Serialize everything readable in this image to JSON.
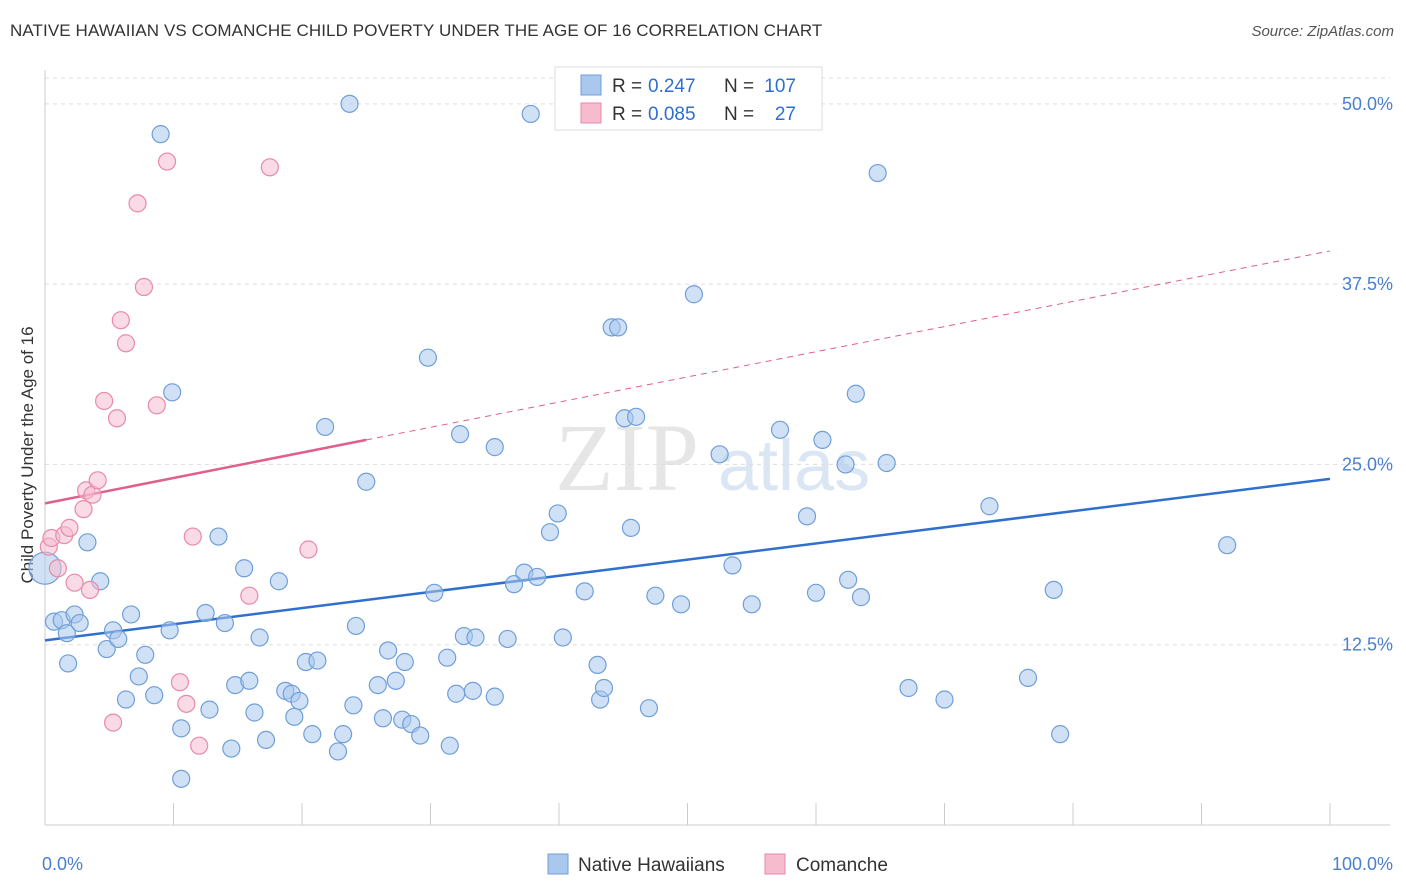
{
  "header": {
    "title": "NATIVE HAWAIIAN VS COMANCHE CHILD POVERTY UNDER THE AGE OF 16 CORRELATION CHART",
    "source": "Source: ZipAtlas.com"
  },
  "watermark": {
    "zip": "ZIP",
    "atlas": "atlas"
  },
  "legend": {
    "r_label": "R =",
    "n_label": "N =",
    "entries": [
      {
        "r": "0.247",
        "n": "107"
      },
      {
        "r": "0.085",
        "n": "27"
      }
    ]
  },
  "colors": {
    "blue_fill": "#aac8ee",
    "blue_stroke": "#6f9fd8",
    "blue_line": "#2f6fcf",
    "pink_fill": "#f6bccd",
    "pink_stroke": "#e88aa8",
    "pink_line": "#e0608a",
    "grid": "#dddddd",
    "axis_label": "#4a7fd0"
  },
  "chart_data": {
    "type": "scatter",
    "title": "NATIVE HAWAIIAN VS COMANCHE CHILD POVERTY UNDER THE AGE OF 16 CORRELATION CHART",
    "xlabel": "",
    "ylabel": "Child Poverty Under the Age of 16",
    "xlim": [
      0,
      100
    ],
    "ylim": [
      0,
      52
    ],
    "x_tick_labels": [
      "0.0%",
      "100.0%"
    ],
    "y_ticks": [
      12.5,
      25.0,
      37.5,
      50.0
    ],
    "y_tick_labels": [
      "12.5%",
      "25.0%",
      "37.5%",
      "50.0%"
    ],
    "series": [
      {
        "name": "Native Hawaiians",
        "r": 0.247,
        "n": 107,
        "trend": {
          "x": [
            0,
            100
          ],
          "y": [
            12.8,
            24.0
          ],
          "dashed_extension": false
        },
        "points": [
          [
            0,
            17.8
          ],
          [
            0.7,
            14.1
          ],
          [
            1.3,
            14.2
          ],
          [
            1.7,
            13.3
          ],
          [
            1.8,
            11.2
          ],
          [
            2.3,
            14.6
          ],
          [
            2.7,
            14.0
          ],
          [
            3.3,
            19.6
          ],
          [
            4.3,
            16.9
          ],
          [
            4.8,
            12.2
          ],
          [
            5.3,
            13.5
          ],
          [
            5.7,
            12.9
          ],
          [
            6.3,
            8.7
          ],
          [
            6.7,
            14.6
          ],
          [
            7.3,
            10.3
          ],
          [
            7.8,
            11.8
          ],
          [
            8.5,
            9.0
          ],
          [
            9.0,
            47.9
          ],
          [
            9.7,
            13.5
          ],
          [
            9.9,
            30.0
          ],
          [
            10.6,
            6.7
          ],
          [
            10.6,
            3.2
          ],
          [
            12.5,
            14.7
          ],
          [
            12.8,
            8.0
          ],
          [
            13.5,
            20.0
          ],
          [
            14.0,
            14.0
          ],
          [
            14.5,
            5.3
          ],
          [
            14.8,
            9.7
          ],
          [
            15.5,
            17.8
          ],
          [
            15.9,
            10.0
          ],
          [
            16.3,
            7.8
          ],
          [
            16.7,
            13.0
          ],
          [
            17.2,
            5.9
          ],
          [
            18.2,
            16.9
          ],
          [
            18.7,
            9.3
          ],
          [
            19.2,
            9.1
          ],
          [
            19.4,
            7.5
          ],
          [
            19.8,
            8.6
          ],
          [
            20.3,
            11.3
          ],
          [
            20.8,
            6.3
          ],
          [
            21.2,
            11.4
          ],
          [
            21.8,
            27.6
          ],
          [
            22.8,
            5.1
          ],
          [
            23.2,
            6.3
          ],
          [
            23.7,
            50.0
          ],
          [
            24.0,
            8.3
          ],
          [
            24.2,
            13.8
          ],
          [
            25.0,
            23.8
          ],
          [
            25.9,
            9.7
          ],
          [
            26.3,
            7.4
          ],
          [
            26.7,
            12.1
          ],
          [
            27.3,
            10.0
          ],
          [
            27.8,
            7.3
          ],
          [
            28.0,
            11.3
          ],
          [
            28.5,
            7.0
          ],
          [
            29.2,
            6.2
          ],
          [
            29.8,
            32.4
          ],
          [
            30.3,
            16.1
          ],
          [
            31.3,
            11.6
          ],
          [
            31.5,
            5.5
          ],
          [
            32.0,
            9.1
          ],
          [
            32.3,
            27.1
          ],
          [
            32.6,
            13.1
          ],
          [
            33.3,
            9.3
          ],
          [
            33.5,
            13.0
          ],
          [
            35.0,
            8.9
          ],
          [
            35.0,
            26.2
          ],
          [
            36.0,
            12.9
          ],
          [
            36.5,
            16.7
          ],
          [
            37.3,
            17.5
          ],
          [
            37.8,
            49.3
          ],
          [
            38.3,
            17.2
          ],
          [
            39.3,
            20.3
          ],
          [
            39.9,
            21.6
          ],
          [
            40.3,
            13.0
          ],
          [
            42.0,
            16.2
          ],
          [
            43.0,
            11.1
          ],
          [
            43.2,
            8.7
          ],
          [
            43.5,
            9.5
          ],
          [
            44.1,
            34.5
          ],
          [
            44.6,
            34.5
          ],
          [
            45.1,
            28.2
          ],
          [
            45.6,
            20.6
          ],
          [
            46.0,
            28.3
          ],
          [
            47.0,
            8.1
          ],
          [
            47.5,
            15.9
          ],
          [
            49.5,
            15.3
          ],
          [
            50.5,
            36.8
          ],
          [
            52.5,
            25.7
          ],
          [
            53.5,
            18.0
          ],
          [
            55.0,
            15.3
          ],
          [
            57.2,
            27.4
          ],
          [
            59.3,
            21.4
          ],
          [
            60.0,
            16.1
          ],
          [
            60.5,
            26.7
          ],
          [
            62.3,
            25.0
          ],
          [
            62.5,
            17.0
          ],
          [
            63.1,
            29.9
          ],
          [
            63.5,
            15.8
          ],
          [
            64.8,
            45.2
          ],
          [
            65.5,
            25.1
          ],
          [
            67.2,
            9.5
          ],
          [
            70.0,
            8.7
          ],
          [
            73.5,
            22.1
          ],
          [
            76.5,
            10.2
          ],
          [
            78.5,
            16.3
          ],
          [
            79.0,
            6.3
          ],
          [
            92.0,
            19.4
          ]
        ]
      },
      {
        "name": "Comanche",
        "r": 0.085,
        "n": 27,
        "trend": {
          "x": [
            0,
            25,
            100
          ],
          "y": [
            22.3,
            26.7,
            39.8
          ],
          "solid_until_x": 25
        },
        "points": [
          [
            0.3,
            19.3
          ],
          [
            0.5,
            19.9
          ],
          [
            1.0,
            17.8
          ],
          [
            1.5,
            20.1
          ],
          [
            1.9,
            20.6
          ],
          [
            2.3,
            16.8
          ],
          [
            3.0,
            21.9
          ],
          [
            3.2,
            23.2
          ],
          [
            3.5,
            16.3
          ],
          [
            3.7,
            22.9
          ],
          [
            4.1,
            23.9
          ],
          [
            4.6,
            29.4
          ],
          [
            5.3,
            7.1
          ],
          [
            5.6,
            28.2
          ],
          [
            5.9,
            35.0
          ],
          [
            6.3,
            33.4
          ],
          [
            7.2,
            43.1
          ],
          [
            7.7,
            37.3
          ],
          [
            8.7,
            29.1
          ],
          [
            9.5,
            46.0
          ],
          [
            10.5,
            9.9
          ],
          [
            11.0,
            8.4
          ],
          [
            11.5,
            20.0
          ],
          [
            12.0,
            5.5
          ],
          [
            15.9,
            15.9
          ],
          [
            17.5,
            45.6
          ],
          [
            20.5,
            19.1
          ]
        ]
      }
    ]
  },
  "bottom_legend": [
    "Native Hawaiians",
    "Comanche"
  ]
}
